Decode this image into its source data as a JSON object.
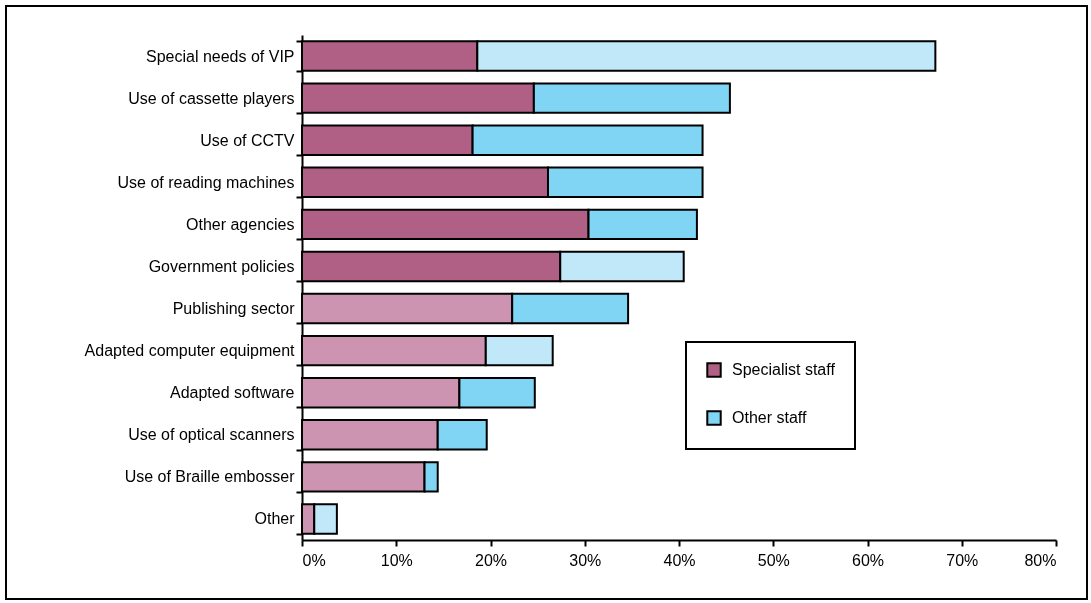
{
  "chart_data": {
    "type": "bar",
    "orientation": "horizontal",
    "stacked": true,
    "categories": [
      "Special needs of VIP",
      "Use of cassette players",
      "Use of CCTV",
      "Use of reading machines",
      "Other agencies",
      "Government policies",
      "Publishing sector",
      "Adapted computer equipment",
      "Adapted software",
      "Use of optical scanners",
      "Use of Braille embosser",
      "Other"
    ],
    "series": [
      {
        "name": "Specialist staff",
        "color": "#b06084",
        "colors": [
          "#b06084",
          "#b06084",
          "#b06084",
          "#b06084",
          "#b06084",
          "#b06084",
          "#cc94b0",
          "#cc94b0",
          "#cc94b0",
          "#cc94b0",
          "#cc94b0",
          "#cc94b0"
        ],
        "values": [
          18.6,
          24.6,
          18.1,
          26.1,
          30.4,
          27.4,
          22.3,
          19.5,
          16.7,
          14.4,
          13.0,
          1.3
        ]
      },
      {
        "name": "Other staff",
        "color": "#80d4f4",
        "colors": [
          "#c0e8f8",
          "#80d4f4",
          "#80d4f4",
          "#80d4f4",
          "#80d4f4",
          "#c0e8f8",
          "#80d4f4",
          "#c0e8f8",
          "#80d4f4",
          "#80d4f4",
          "#80d4f4",
          "#c0e8f8"
        ],
        "values": [
          48.6,
          20.8,
          24.4,
          16.4,
          11.5,
          13.1,
          12.3,
          7.1,
          8.0,
          5.2,
          1.4,
          2.4
        ]
      }
    ],
    "xlim": [
      0,
      80
    ],
    "xticks": [
      {
        "value": 0,
        "label": "0%"
      },
      {
        "value": 10,
        "label": "10%"
      },
      {
        "value": 20,
        "label": "20%"
      },
      {
        "value": 30,
        "label": "30%"
      },
      {
        "value": 40,
        "label": "40%"
      },
      {
        "value": 50,
        "label": "50%"
      },
      {
        "value": 60,
        "label": "60%"
      },
      {
        "value": 70,
        "label": "70%"
      },
      {
        "value": 80,
        "label": "80%"
      }
    ],
    "grid": false,
    "legend": "right"
  }
}
